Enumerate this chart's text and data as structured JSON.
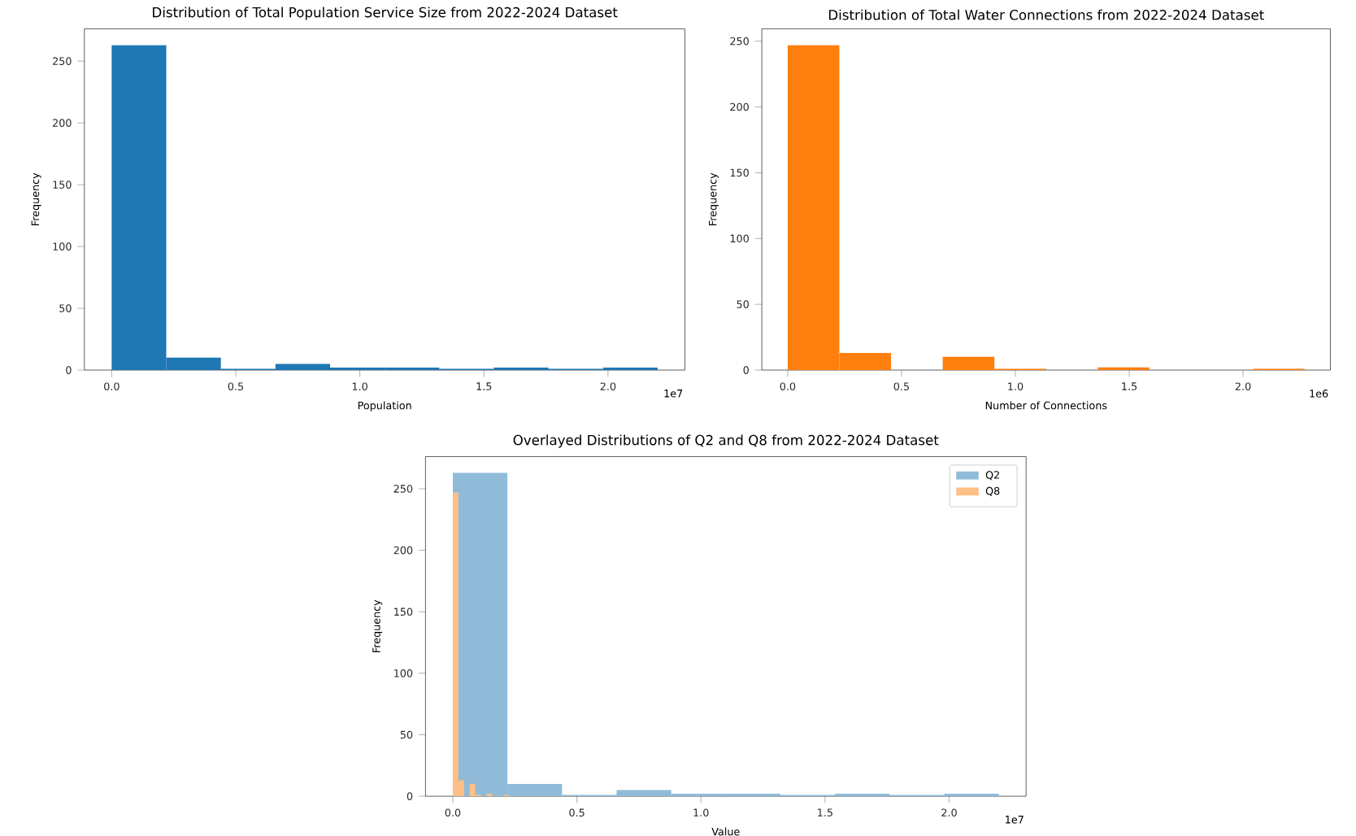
{
  "chart_data": [
    {
      "type": "histogram",
      "title": "Distribution of Total Population Service Size from 2022-2024 Dataset",
      "xlabel": "Population",
      "ylabel": "Frequency",
      "color": "#1f77b4",
      "bins": [
        0,
        0.22,
        0.44,
        0.66,
        0.88,
        1.1,
        1.32,
        1.54,
        1.76,
        1.98,
        2.2
      ],
      "values": [
        263,
        10,
        1,
        5,
        2,
        2,
        1,
        2,
        1,
        2
      ],
      "xlim": [
        -0.11,
        2.31
      ],
      "ylim": [
        0,
        276.15
      ],
      "xticks": [
        {
          "value": 0,
          "label": "0.0"
        },
        {
          "value": 0.5,
          "label": "0.5"
        },
        {
          "value": 1,
          "label": "1.0"
        },
        {
          "value": 1.5,
          "label": "1.5"
        },
        {
          "value": 2,
          "label": "2.0"
        }
      ],
      "yticks": [
        0,
        50,
        100,
        150,
        200,
        250
      ],
      "annotations": [
        "1e7"
      ]
    },
    {
      "type": "histogram",
      "title": "Distribution of Total Water Connections from 2022-2024 Dataset",
      "xlabel": "Number of Connections",
      "ylabel": "Frequency",
      "color": "#ff7f0e",
      "bins": [
        0,
        0.227,
        0.454,
        0.681,
        0.908,
        1.135,
        1.362,
        1.589,
        1.816,
        2.043,
        2.27
      ],
      "values": [
        247,
        13,
        0,
        10,
        1,
        0,
        2,
        0,
        0,
        1
      ],
      "xlim": [
        -0.1135,
        2.3835
      ],
      "ylim": [
        0,
        259.35
      ],
      "xticks": [
        {
          "value": 0,
          "label": "0.0"
        },
        {
          "value": 0.5,
          "label": "0.5"
        },
        {
          "value": 1,
          "label": "1.0"
        },
        {
          "value": 1.5,
          "label": "1.5"
        },
        {
          "value": 2,
          "label": "2.0"
        }
      ],
      "yticks": [
        0,
        50,
        100,
        150,
        200,
        250
      ],
      "annotations": [
        "1e6"
      ]
    },
    {
      "type": "histogram",
      "title": "Overlayed Distributions of Q2 and Q8 from 2022-2024 Dataset",
      "xlabel": "Value",
      "ylabel": "Frequency",
      "legend": "top right",
      "series": [
        {
          "name": "Q2",
          "color": "#8fbbd9",
          "values": [
            263,
            10,
            1,
            5,
            2,
            2,
            1,
            2,
            1,
            2
          ]
        },
        {
          "name": "Q8",
          "color": "#ffbf86",
          "bins": [
            0,
            0.0227,
            0.0454,
            0.0681,
            0.0908,
            0.1135,
            0.1362,
            0.1589,
            0.1816,
            0.2043,
            0.227
          ],
          "values": [
            247,
            13,
            0,
            10,
            1,
            0,
            2,
            0,
            0,
            1
          ]
        }
      ],
      "bins": [
        0,
        0.22,
        0.44,
        0.66,
        0.88,
        1.1,
        1.32,
        1.54,
        1.76,
        1.98,
        2.2
      ],
      "xlim": [
        -0.11,
        2.31
      ],
      "ylim": [
        0,
        276.15
      ],
      "xticks": [
        {
          "value": 0,
          "label": "0.0"
        },
        {
          "value": 0.5,
          "label": "0.5"
        },
        {
          "value": 1,
          "label": "1.0"
        },
        {
          "value": 1.5,
          "label": "1.5"
        },
        {
          "value": 2,
          "label": "2.0"
        }
      ],
      "yticks": [
        0,
        50,
        100,
        150,
        200,
        250
      ],
      "annotations": [
        "1e7"
      ]
    }
  ]
}
